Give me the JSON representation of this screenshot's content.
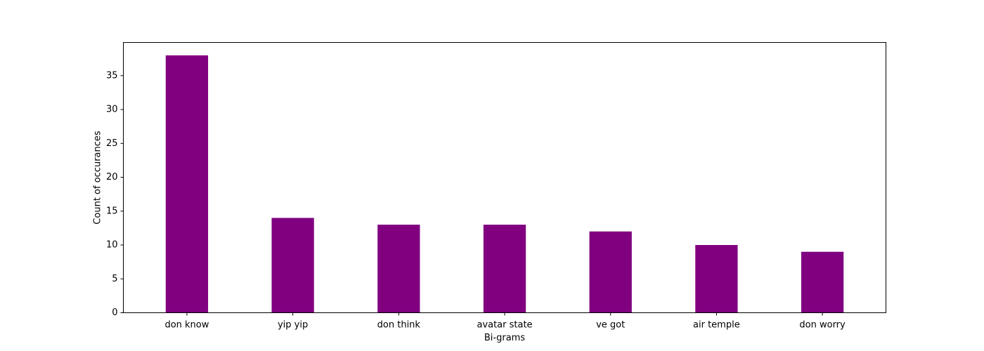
{
  "chart_data": {
    "type": "bar",
    "title": "",
    "xlabel": "Bi-grams",
    "ylabel": "Count of occurances",
    "categories": [
      "don know",
      "yip yip",
      "don think",
      "avatar state",
      "ve got",
      "air temple",
      "don worry"
    ],
    "values": [
      38,
      14,
      13,
      13,
      12,
      10,
      9
    ],
    "ylim": [
      0,
      39.9
    ],
    "yticks": [
      0,
      5,
      10,
      15,
      20,
      25,
      30,
      35
    ],
    "bar_color": "#800080",
    "grid": false,
    "legend": "none"
  }
}
